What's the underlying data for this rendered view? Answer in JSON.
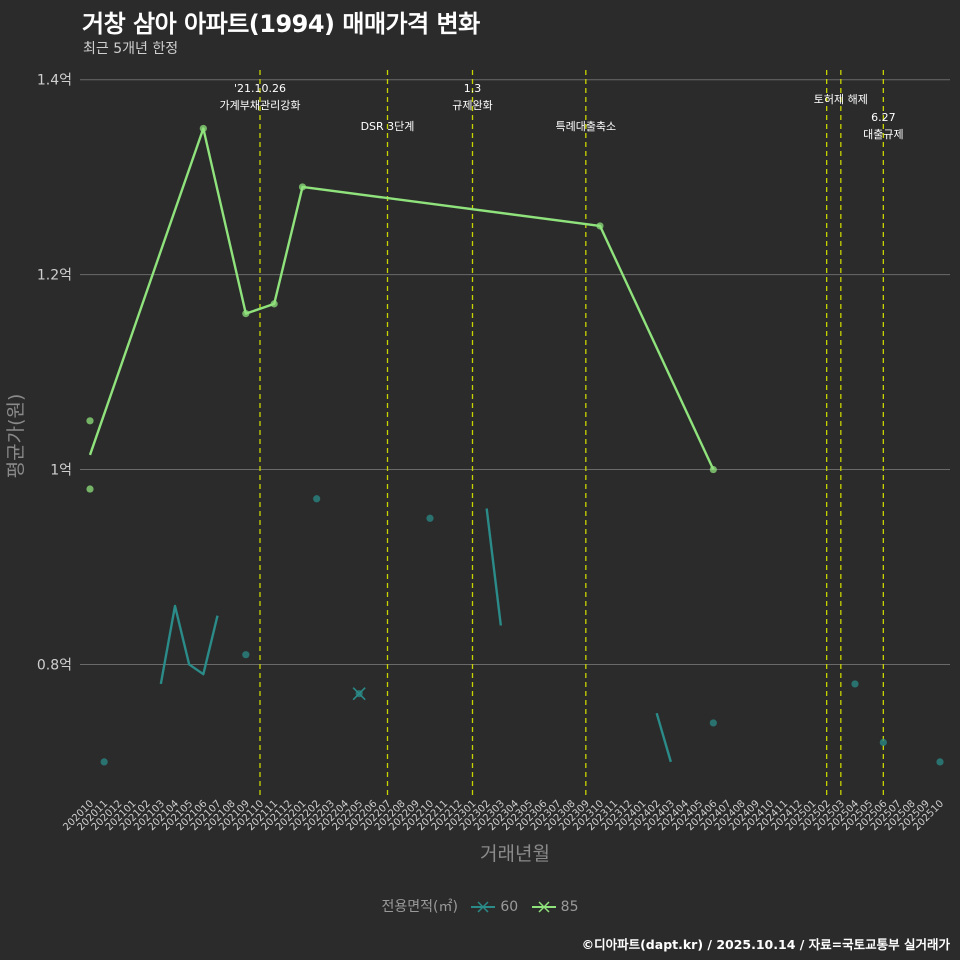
{
  "header": {
    "title": "거창 삼아 아파트(1994) 매매가격 변화",
    "subtitle": "최근 5개년 한정"
  },
  "caption": "©디아파트(dapt.kr) / 2025.10.14 / 자료=국토교통부 실거래가",
  "legend": {
    "title": "전용면적(㎡)",
    "items": [
      {
        "label": "60",
        "color": "#2a8b88"
      },
      {
        "label": "85",
        "color": "#8fe27c"
      }
    ]
  },
  "chart_data": {
    "type": "line",
    "title": "거창 삼아 아파트(1994) 매매가격 변화",
    "xlabel": "거래년월",
    "ylabel": "평균가(원)",
    "ylim": [
      0.665,
      1.41
    ],
    "yticks": [
      0.8,
      1.0,
      1.2,
      1.4
    ],
    "ytick_labels": [
      "0.8억",
      "1억",
      "1.2억",
      "1.4억"
    ],
    "grid": true,
    "categories": [
      "202010",
      "202011",
      "202012",
      "202101",
      "202102",
      "202103",
      "202104",
      "202105",
      "202106",
      "202107",
      "202108",
      "202109",
      "202110",
      "202111",
      "202112",
      "202201",
      "202202",
      "202203",
      "202204",
      "202205",
      "202206",
      "202207",
      "202208",
      "202209",
      "202210",
      "202211",
      "202212",
      "202301",
      "202302",
      "202303",
      "202304",
      "202305",
      "202306",
      "202307",
      "202308",
      "202309",
      "202310",
      "202311",
      "202312",
      "202401",
      "202402",
      "202403",
      "202404",
      "202405",
      "202406",
      "202407",
      "202408",
      "202409",
      "202410",
      "202411",
      "202412",
      "202501",
      "202502",
      "202503",
      "202504",
      "202505",
      "202506",
      "202507",
      "202508",
      "202509",
      "202510"
    ],
    "series": [
      {
        "name": "60",
        "color": "#2a8b88",
        "line_segments": [
          [
            [
              "202103",
              0.78
            ],
            [
              "202104",
              0.86
            ],
            [
              "202105",
              0.8
            ],
            [
              "202106",
              0.79
            ],
            [
              "202107",
              0.85
            ]
          ],
          [
            [
              "202302",
              0.96
            ],
            [
              "202303",
              0.84
            ]
          ],
          [
            [
              "202402",
              0.75
            ],
            [
              "202403",
              0.7
            ]
          ]
        ],
        "points": [
          [
            "202011",
            0.7
          ],
          [
            "202109",
            0.81
          ],
          [
            "202202",
            0.97
          ],
          [
            "202210",
            0.95
          ],
          [
            "202205",
            0.77
          ],
          [
            "202406",
            0.74
          ],
          [
            "202504",
            0.78
          ],
          [
            "202506",
            0.72
          ],
          [
            "202510",
            0.7
          ]
        ],
        "cross_points": [
          [
            "202205",
            0.77
          ]
        ]
      },
      {
        "name": "85",
        "color": "#8fe27c",
        "line_segments": [
          [
            [
              "202010",
              1.015
            ],
            [
              "202106",
              1.35
            ],
            [
              "202109",
              1.16
            ],
            [
              "202111",
              1.17
            ],
            [
              "202201",
              1.29
            ],
            [
              "202310",
              1.25
            ],
            [
              "202406",
              1.0
            ]
          ]
        ],
        "points": [
          [
            "202010",
            1.05
          ],
          [
            "202010",
            0.98
          ],
          [
            "202106",
            1.35
          ],
          [
            "202109",
            1.16
          ],
          [
            "202111",
            1.17
          ],
          [
            "202201",
            1.29
          ],
          [
            "202310",
            1.25
          ],
          [
            "202406",
            1.0
          ]
        ],
        "cross_points": []
      }
    ],
    "events": [
      {
        "x": 12.0,
        "lines": [
          "'21.10.26",
          "가계부채관리강화"
        ],
        "row": 0
      },
      {
        "x": 21.0,
        "lines": [
          "DSR 3단계"
        ],
        "row": 1
      },
      {
        "x": 27.0,
        "lines": [
          "1.3",
          "규제완화"
        ],
        "row": 0
      },
      {
        "x": 35.0,
        "lines": [
          "특례대출축소"
        ],
        "row": 1
      },
      {
        "x": 52.0,
        "lines": [],
        "row": 0
      },
      {
        "x": 53.0,
        "lines": [
          "토허제 해제"
        ],
        "row": 0
      },
      {
        "x": 56.0,
        "lines": [
          "6.27",
          "대출규제"
        ],
        "row": 2
      }
    ]
  }
}
